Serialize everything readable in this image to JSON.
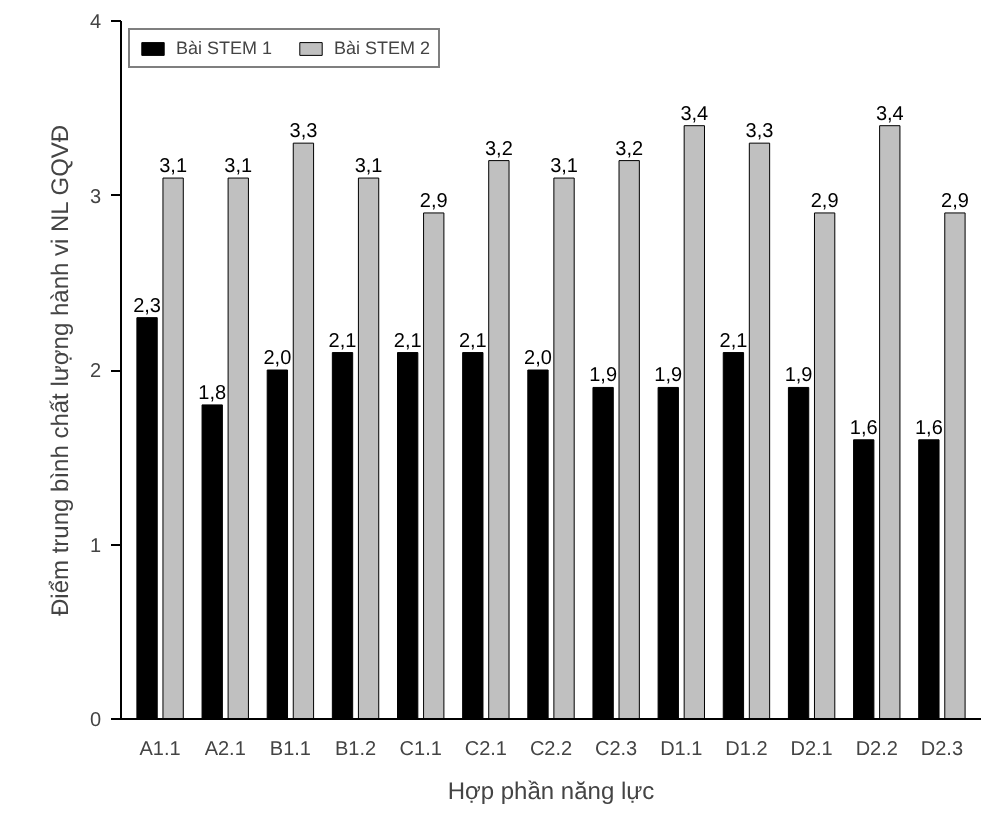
{
  "chart_data": {
    "type": "bar",
    "xlabel": "Hợp phần năng lực",
    "ylabel": "Điểm trung bình chất lượng hành vi NL GQVĐ",
    "categories": [
      "A1.1",
      "A2.1",
      "B1.1",
      "B1.2",
      "C1.1",
      "C2.1",
      "C2.2",
      "C2.3",
      "D1.1",
      "D1.2",
      "D2.1",
      "D2.2",
      "D2.3"
    ],
    "series": [
      {
        "name": "Bài STEM 1",
        "color": "#000000",
        "values": [
          2.3,
          1.8,
          2.0,
          2.1,
          2.1,
          2.1,
          2.0,
          1.9,
          1.9,
          2.1,
          1.9,
          1.6,
          1.6
        ],
        "value_labels": [
          "2,3",
          "1,8",
          "2,0",
          "2,1",
          "2,1",
          "2,1",
          "2,0",
          "1,9",
          "1,9",
          "2,1",
          "1,9",
          "1,6",
          "1,6"
        ]
      },
      {
        "name": "Bài STEM 2",
        "color": "#c0c0c0",
        "values": [
          3.1,
          3.1,
          3.3,
          3.1,
          2.9,
          3.2,
          3.1,
          3.2,
          3.4,
          3.3,
          2.9,
          3.4,
          2.9
        ],
        "value_labels": [
          "3,1",
          "3,1",
          "3,3",
          "3,1",
          "2,9",
          "3,2",
          "3,1",
          "3,2",
          "3,4",
          "3,3",
          "2,9",
          "3,4",
          "2,9"
        ]
      }
    ],
    "ylim": [
      0,
      4
    ],
    "yticks": [
      0,
      1,
      2,
      3,
      4
    ],
    "grid": false,
    "legend": "top left"
  }
}
